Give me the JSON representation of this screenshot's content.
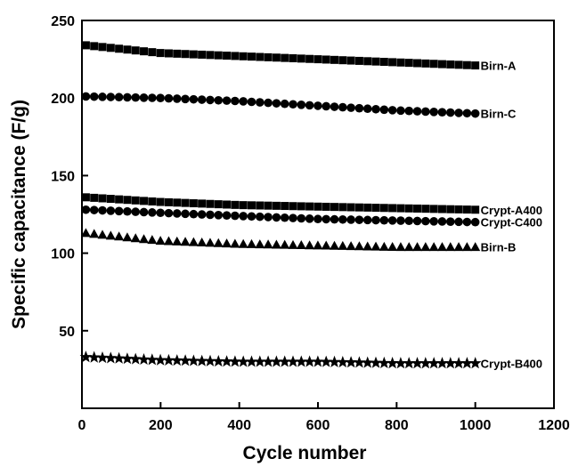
{
  "chart_data": {
    "type": "scatter",
    "xlabel": "Cycle number",
    "ylabel": "Specific capacitance (F/g)",
    "xlim": [
      0,
      1200
    ],
    "ylim": [
      0,
      250
    ],
    "xticks": [
      0,
      200,
      400,
      600,
      800,
      1000,
      1200
    ],
    "yticks": [
      50,
      100,
      150,
      200,
      250
    ],
    "grid": false,
    "legend": "inline-right",
    "series": [
      {
        "name": "Birn-A",
        "marker": "square",
        "color": "#000000",
        "x": [
          10,
          200,
          400,
          600,
          800,
          1000
        ],
        "y": [
          234,
          229,
          227,
          225,
          223,
          221
        ]
      },
      {
        "name": "Birn-C",
        "marker": "circle",
        "color": "#000000",
        "x": [
          10,
          200,
          400,
          600,
          800,
          1000
        ],
        "y": [
          201,
          200,
          198,
          195,
          192,
          190
        ]
      },
      {
        "name": "Crypt-A400",
        "marker": "square",
        "color": "#000000",
        "x": [
          10,
          200,
          400,
          600,
          800,
          1000
        ],
        "y": [
          136,
          133,
          131,
          130,
          129,
          128
        ]
      },
      {
        "name": "Crypt-C400",
        "marker": "circle",
        "color": "#000000",
        "x": [
          10,
          200,
          400,
          600,
          800,
          1000
        ],
        "y": [
          128,
          126,
          124,
          122,
          121,
          120
        ]
      },
      {
        "name": "Birn-B",
        "marker": "triangle",
        "color": "#000000",
        "x": [
          10,
          200,
          400,
          600,
          800,
          1000
        ],
        "y": [
          113,
          108,
          106,
          105,
          104,
          104
        ]
      },
      {
        "name": "Crypt-B400",
        "marker": "star",
        "color": "#000000",
        "x": [
          10,
          200,
          400,
          600,
          800,
          1000
        ],
        "y": [
          33,
          31,
          30,
          30,
          29,
          29
        ]
      }
    ]
  }
}
